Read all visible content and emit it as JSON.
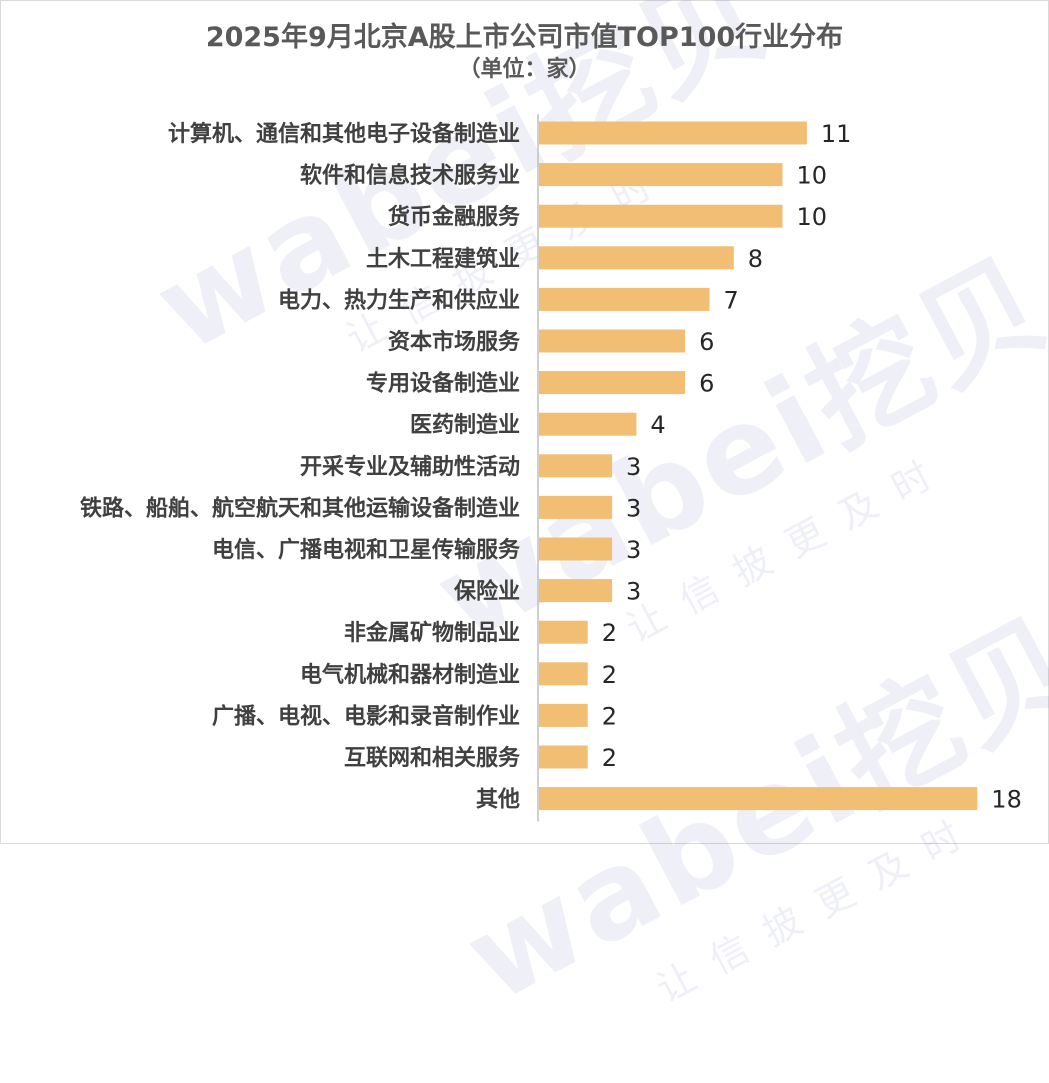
{
  "chart_data": {
    "type": "bar",
    "orientation": "horizontal",
    "title": "2025年9月北京A股上市公司市值TOP100行业分布",
    "subtitle": "（单位：家）",
    "categories": [
      "计算机、通信和其他电子设备制造业",
      "软件和信息技术服务业",
      "货币金融服务",
      "土木工程建筑业",
      "电力、热力生产和供应业",
      "资本市场服务",
      "专用设备制造业",
      "医药制造业",
      "开采专业及辅助性活动",
      "铁路、船舶、航空航天和其他运输设备制造业",
      "电信、广播电视和卫星传输服务",
      "保险业",
      "非金属矿物制品业",
      "电气机械和器材制造业",
      "广播、电视、电影和录音制作业",
      "互联网和相关服务",
      "其他"
    ],
    "values": [
      11,
      10,
      10,
      8,
      7,
      6,
      6,
      4,
      3,
      3,
      3,
      3,
      2,
      2,
      2,
      2,
      18
    ],
    "xlim": [
      0,
      18
    ],
    "grid": false,
    "legend": "none",
    "bar_color": "#F2BE73",
    "axis_color": "#BFBFBF"
  },
  "watermark": {
    "main": "wabei挖贝",
    "sub": "让信披更及时"
  }
}
